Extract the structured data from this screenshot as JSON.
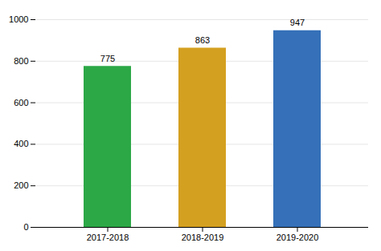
{
  "chart_data": {
    "type": "bar",
    "categories": [
      "2017-2018",
      "2018-2019",
      "2019-2020"
    ],
    "values": [
      775,
      863,
      947
    ],
    "colors": [
      "#2ca846",
      "#d4a020",
      "#3570b8"
    ],
    "ylim": [
      0,
      1000
    ],
    "yticks": [
      0,
      200,
      400,
      600,
      800,
      1000
    ],
    "grid": true,
    "data_labels": true
  }
}
